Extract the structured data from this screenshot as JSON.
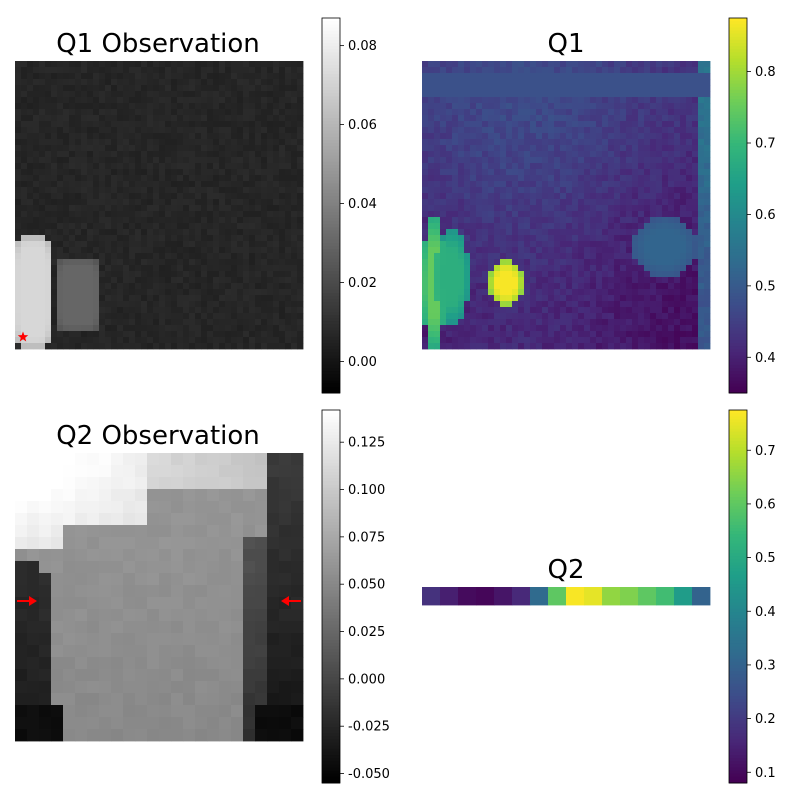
{
  "chart_data": [
    {
      "type": "heatmap",
      "title": "Q1 Observation",
      "colormap": "gray",
      "grid_size": [
        48,
        48
      ],
      "colorbar": {
        "range": [
          -0.008,
          0.087
        ],
        "ticks": [
          "0.00",
          "0.02",
          "0.04",
          "0.06",
          "0.08"
        ],
        "tick_values": [
          0.0,
          0.02,
          0.04,
          0.06,
          0.08
        ]
      },
      "background_value": 0.006,
      "regions": [
        {
          "shape": "rounded-blob",
          "value": 0.072,
          "x": [
            0,
            6
          ],
          "y": [
            29,
            48
          ]
        },
        {
          "shape": "rounded-blob",
          "value": 0.03,
          "x": [
            7,
            14
          ],
          "y": [
            33,
            45
          ]
        }
      ],
      "markers": [
        {
          "shape": "star",
          "color": "#ff0000",
          "position": [
            0.5,
            47
          ]
        }
      ]
    },
    {
      "type": "heatmap",
      "title": "Q1",
      "colormap": "viridis",
      "grid_size": [
        48,
        48
      ],
      "colorbar": {
        "range": [
          0.35,
          0.875
        ],
        "ticks": [
          "0.4",
          "0.5",
          "0.6",
          "0.7",
          "0.8"
        ],
        "tick_values": [
          0.4,
          0.5,
          0.6,
          0.7,
          0.8
        ]
      },
      "background_value": 0.42,
      "regions": [
        {
          "shape": "band",
          "value": 0.48,
          "x": [
            0,
            48
          ],
          "y": [
            2,
            6
          ]
        },
        {
          "shape": "ellipse",
          "value": 0.52,
          "x": [
            35,
            46
          ],
          "y": [
            26,
            36
          ]
        },
        {
          "shape": "ellipse",
          "value": 0.75,
          "x": [
            0,
            4
          ],
          "y": [
            26,
            48
          ]
        },
        {
          "shape": "ellipse",
          "value": 0.68,
          "x": [
            2,
            8
          ],
          "y": [
            28,
            44
          ]
        },
        {
          "shape": "ellipse",
          "value": 0.87,
          "x": [
            11,
            17
          ],
          "y": [
            33,
            41
          ]
        }
      ]
    },
    {
      "type": "heatmap",
      "title": "Q2 Observation",
      "colormap": "gray",
      "grid_size": [
        24,
        24
      ],
      "colorbar": {
        "range": [
          -0.055,
          0.142
        ],
        "ticks": [
          "-0.050",
          "-0.025",
          "0.000",
          "0.025",
          "0.050",
          "0.075",
          "0.100",
          "0.125"
        ],
        "tick_values": [
          -0.05,
          -0.025,
          0.0,
          0.025,
          0.05,
          0.075,
          0.1,
          0.125
        ]
      },
      "regions": [
        {
          "shape": "gradient-top-left",
          "value": 0.13,
          "x": [
            0,
            10
          ],
          "y": [
            0,
            8
          ]
        },
        {
          "shape": "body",
          "value": 0.065,
          "x": [
            3,
            20
          ],
          "y": [
            6,
            24
          ]
        },
        {
          "shape": "edge-left",
          "value": -0.01,
          "x": [
            0,
            3
          ],
          "y": [
            9,
            24
          ]
        },
        {
          "shape": "edge-right",
          "value": -0.02,
          "x": [
            20,
            24
          ],
          "y": [
            0,
            24
          ]
        }
      ],
      "markers": [
        {
          "shape": "arrow-right",
          "color": "#ff0000",
          "position": [
            1,
            12
          ]
        },
        {
          "shape": "arrow-left",
          "color": "#ff0000",
          "position": [
            23,
            12
          ]
        }
      ]
    },
    {
      "type": "heatmap",
      "title": "Q2",
      "colormap": "viridis",
      "grid_size": [
        16,
        1
      ],
      "colorbar": {
        "range": [
          0.08,
          0.775
        ],
        "ticks": [
          "0.1",
          "0.2",
          "0.3",
          "0.4",
          "0.5",
          "0.6",
          "0.7"
        ],
        "tick_values": [
          0.1,
          0.2,
          0.3,
          0.4,
          0.5,
          0.6,
          0.7
        ]
      },
      "values": [
        0.18,
        0.14,
        0.1,
        0.09,
        0.12,
        0.16,
        0.32,
        0.6,
        0.77,
        0.75,
        0.66,
        0.64,
        0.6,
        0.56,
        0.46,
        0.3
      ]
    }
  ]
}
